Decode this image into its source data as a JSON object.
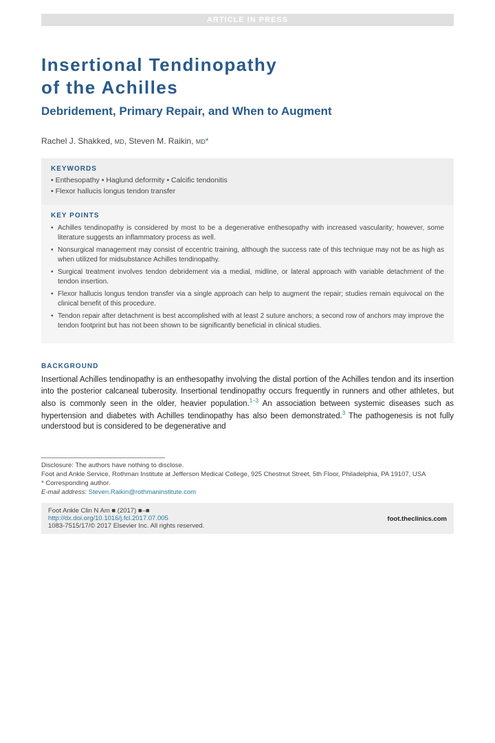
{
  "banner": "ARTICLE IN PRESS",
  "title_line1": "Insertional Tendinopathy",
  "title_line2": "of the Achilles",
  "subtitle": "Debridement, Primary Repair, and When to Augment",
  "authors": {
    "a1_name": "Rachel J. Shakked,",
    "a1_deg": "MD",
    "a2_name": "Steven M. Raikin,",
    "a2_deg": "MD",
    "corr": "*"
  },
  "keywords": {
    "heading": "KEYWORDS",
    "line1": "• Enthesopathy • Haglund deformity • Calcific tendonitis",
    "line2": "• Flexor hallucis longus tendon transfer"
  },
  "keypoints": {
    "heading": "KEY POINTS",
    "items": [
      "Achilles tendinopathy is considered by most to be a degenerative enthesopathy with increased vascularity; however, some literature suggests an inflammatory process as well.",
      "Nonsurgical management may consist of eccentric training, although the success rate of this technique may not be as high as when utilized for midsubstance Achilles tendinopathy.",
      "Surgical treatment involves tendon debridement via a medial, midline, or lateral approach with variable detachment of the tendon insertion.",
      "Flexor hallucis longus tendon transfer via a single approach can help to augment the repair; studies remain equivocal on the clinical benefit of this procedure.",
      "Tendon repair after detachment is best accomplished with at least 2 suture anchors; a second row of anchors may improve the tendon footprint but has not been shown to be significantly beneficial in clinical studies."
    ]
  },
  "background": {
    "heading": "BACKGROUND",
    "para_pre": "Insertional Achilles tendinopathy is an enthesopathy involving the distal portion of the Achilles tendon and its insertion into the posterior calcaneal tuberosity. Insertional tendinopathy occurs frequently in runners and other athletes, but also is commonly seen in the older, heavier population.",
    "ref1": "1–3",
    "para_mid": " An association between systemic diseases such as hypertension and diabetes with Achilles tendinopathy has also been demonstrated.",
    "ref2": "3",
    "para_post": " The pathogenesis is not fully understood but is considered to be degenerative and"
  },
  "disclosure": {
    "line1": "Disclosure: The authors have nothing to disclose.",
    "line2": "Foot and Ankle Service, Rothman Institute at Jefferson Medical College, 925 Chestnut Street, 5th Floor, Philadelphia, PA 19107, USA",
    "line3": "* Corresponding author.",
    "email_label": "E-mail address: ",
    "email": "Steven.Raikin@rothmaninstitute.com"
  },
  "bottom": {
    "journal": "Foot Ankle Clin N Am ■ (2017) ■–■",
    "doi": "http://dx.doi.org/10.1016/j.fcl.2017.07.005",
    "issn": "1083-7515/17/© 2017 Elsevier Inc. All rights reserved.",
    "site": "foot.theclinics.com"
  },
  "colors": {
    "heading_blue": "#2a5a8a",
    "link_teal": "#2a7a9a",
    "box_grey": "#eeeeee",
    "light_grey": "#f5f5f5",
    "banner_grey": "#e0e0e0",
    "text": "#1a1a1a"
  }
}
